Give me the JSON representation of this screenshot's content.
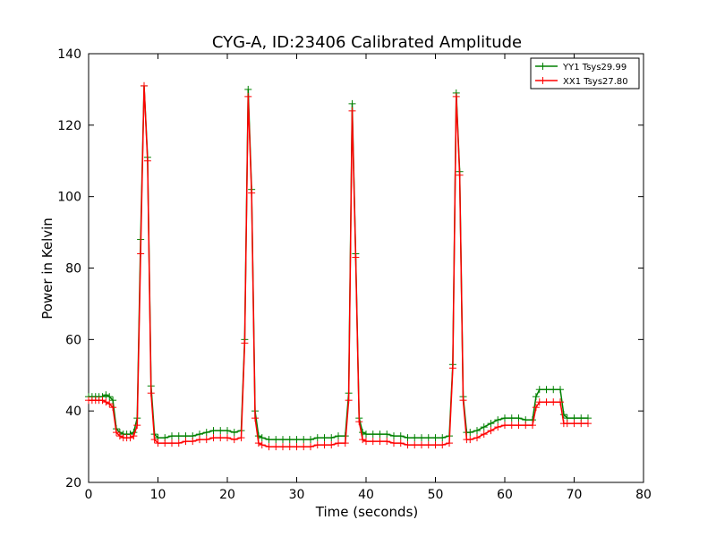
{
  "chart_data": {
    "type": "line",
    "title": "CYG-A, ID:23406 Calibrated Amplitude",
    "xlabel": "Time (seconds)",
    "ylabel": "Power in Kelvin",
    "xlim": [
      0,
      80
    ],
    "ylim": [
      20,
      140
    ],
    "xticks": [
      "0",
      "10",
      "20",
      "30",
      "40",
      "50",
      "60",
      "70",
      "80"
    ],
    "yticks": [
      "20",
      "40",
      "60",
      "80",
      "100",
      "120",
      "140"
    ],
    "grid": false,
    "legend": "top-right",
    "marker": "+",
    "series": [
      {
        "name": "YY1 Tsys29.99",
        "color": "#008000",
        "x": [
          0,
          0.5,
          1,
          1.5,
          2,
          2.5,
          3,
          3.5,
          4,
          4.5,
          5,
          5.5,
          6,
          6.5,
          7,
          7.5,
          8,
          8.5,
          9,
          9.5,
          10,
          11,
          12,
          13,
          14,
          15,
          16,
          17,
          18,
          19,
          20,
          21,
          22,
          22.5,
          23,
          23.5,
          24,
          24.5,
          25,
          26,
          27,
          28,
          29,
          30,
          31,
          32,
          33,
          34,
          35,
          36,
          37,
          37.5,
          38,
          38.5,
          39,
          39.5,
          40,
          41,
          42,
          43,
          44,
          45,
          46,
          47,
          48,
          49,
          50,
          51,
          52,
          52.5,
          53,
          53.5,
          54,
          54.5,
          55,
          56,
          57,
          58,
          59,
          60,
          61,
          62,
          63,
          64,
          64.5,
          65,
          66,
          67,
          68,
          68.5,
          69,
          70,
          71,
          72
        ],
        "y": [
          44,
          44,
          44,
          44,
          44,
          44.5,
          44,
          43,
          35,
          34,
          33.5,
          33.5,
          33.5,
          34,
          38,
          88,
          131,
          111,
          47,
          33.5,
          32.5,
          32.5,
          33,
          33,
          33,
          33,
          33.5,
          34,
          34.5,
          34.5,
          34.5,
          34,
          34.5,
          60,
          130,
          102,
          40,
          33,
          32.5,
          32,
          32,
          32,
          32,
          32,
          32,
          32,
          32.5,
          32.5,
          32.5,
          33,
          33,
          45,
          126,
          84,
          38,
          34,
          33.5,
          33.5,
          33.5,
          33.5,
          33,
          33,
          32.5,
          32.5,
          32.5,
          32.5,
          32.5,
          32.5,
          33,
          53,
          129,
          107,
          44,
          34,
          34,
          34.5,
          35.5,
          36.5,
          37.5,
          38,
          38,
          38,
          37.5,
          37.5,
          44,
          46,
          46,
          46,
          46,
          39,
          38,
          38,
          38,
          38
        ]
      },
      {
        "name": "XX1 Tsys27.80",
        "color": "#ff0000",
        "x": [
          0,
          0.5,
          1,
          1.5,
          2,
          2.5,
          3,
          3.5,
          4,
          4.5,
          5,
          5.5,
          6,
          6.5,
          7,
          7.5,
          8,
          8.5,
          9,
          9.5,
          10,
          11,
          12,
          13,
          14,
          15,
          16,
          17,
          18,
          19,
          20,
          21,
          22,
          22.5,
          23,
          23.5,
          24,
          24.5,
          25,
          26,
          27,
          28,
          29,
          30,
          31,
          32,
          33,
          34,
          35,
          36,
          37,
          37.5,
          38,
          38.5,
          39,
          39.5,
          40,
          41,
          42,
          43,
          44,
          45,
          46,
          47,
          48,
          49,
          50,
          51,
          52,
          52.5,
          53,
          53.5,
          54,
          54.5,
          55,
          56,
          57,
          58,
          59,
          60,
          61,
          62,
          63,
          64,
          64.5,
          65,
          66,
          67,
          68,
          68.5,
          69,
          70,
          71,
          72
        ],
        "y": [
          43,
          43,
          43,
          43,
          43,
          42.5,
          42,
          41,
          34,
          33,
          32.5,
          32.5,
          32.5,
          33,
          36,
          84,
          131,
          110,
          45,
          32,
          31,
          31,
          31,
          31,
          31.5,
          31.5,
          32,
          32,
          32.5,
          32.5,
          32.5,
          32,
          32.5,
          59,
          128,
          101,
          38,
          31,
          30.5,
          30,
          30,
          30,
          30,
          30,
          30,
          30,
          30.5,
          30.5,
          30.5,
          31,
          31,
          43,
          124,
          83,
          37,
          32,
          31.5,
          31.5,
          31.5,
          31.5,
          31,
          31,
          30.5,
          30.5,
          30.5,
          30.5,
          30.5,
          30.5,
          31,
          52,
          128,
          106,
          43,
          32,
          32,
          32.5,
          33.5,
          34.5,
          35.5,
          36,
          36,
          36,
          36,
          36,
          41,
          42.5,
          42.5,
          42.5,
          42.5,
          36.5,
          36.5,
          36.5,
          36.5,
          36.5
        ]
      }
    ]
  }
}
